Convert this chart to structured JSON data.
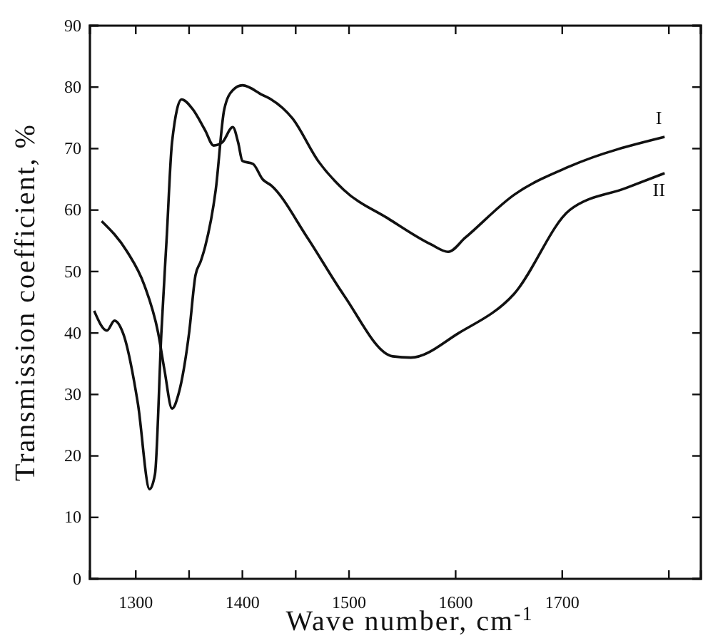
{
  "chart_data": {
    "type": "line",
    "xlabel": "Wave number, cm$^{-1}$",
    "ylabel": "Transmission coefficient, %",
    "xlim": [
      1257,
      1830
    ],
    "ylim": [
      0,
      90
    ],
    "xticks": [
      1300,
      {
        "value": 1350,
        "label": null
      },
      1400,
      {
        "value": 1450,
        "label": null
      },
      1500,
      1600,
      1700,
      {
        "value": 1800,
        "label": null
      }
    ],
    "yticks": [
      0,
      10,
      20,
      30,
      40,
      50,
      60,
      70,
      80,
      90
    ],
    "grid": false,
    "legend": false,
    "marker": "none",
    "line_style": "solid",
    "series": [
      {
        "name": "I",
        "color": "#111111",
        "x": [
          1268,
          1292,
          1308,
          1321,
          1327,
          1334,
          1340,
          1350,
          1356,
          1361,
          1365,
          1375,
          1383,
          1391,
          1400,
          1419,
          1427,
          1447,
          1471,
          1495,
          1536,
          1577,
          1593,
          1609,
          1655,
          1707,
          1796
        ],
        "values": [
          58.2,
          53.2,
          47.8,
          40,
          33.9,
          27.7,
          30,
          40,
          49.4,
          51.7,
          54,
          63.3,
          76.4,
          79.5,
          80.3,
          78.7,
          78,
          74.9,
          68,
          63.3,
          58.7,
          54.4,
          53.2,
          55.5,
          62.5,
          67.1,
          71.9
        ]
      },
      {
        "name": "II",
        "color": "#111111",
        "x": [
          1261,
          1273,
          1280,
          1288,
          1302,
          1313,
          1318,
          1324,
          1329,
          1334,
          1343,
          1353,
          1365,
          1373,
          1381,
          1391,
          1396,
          1400,
          1410,
          1419,
          1427,
          1461,
          1495,
          1541,
          1558,
          1603,
          1655,
          1707,
          1760,
          1796
        ],
        "values": [
          43.6,
          40.4,
          42,
          40,
          28.5,
          14.6,
          17,
          40,
          55.5,
          71,
          78,
          76.5,
          73,
          70.5,
          71,
          73.5,
          71,
          68,
          67.5,
          65,
          64,
          55.5,
          46.2,
          36.2,
          36,
          40,
          46.4,
          60,
          63.6,
          66
        ]
      }
    ]
  }
}
